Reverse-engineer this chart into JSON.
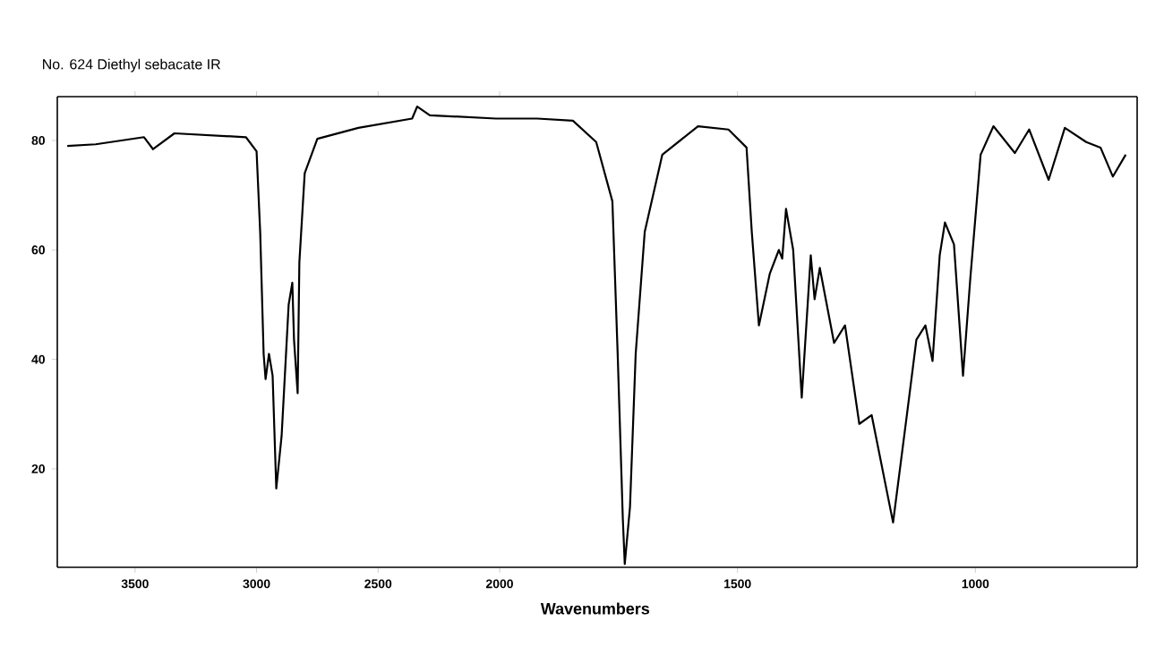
{
  "chart_data": [
    {
      "type": "line",
      "title": "No. 624 Diethyl sebacate IR",
      "color": "#000000",
      "line_style": "solid",
      "xlim": [
        3820,
        2000
      ],
      "ylim": [
        2,
        88
      ],
      "xticks": [
        3500,
        3000,
        2500,
        2000
      ],
      "yticks": [
        20,
        40,
        60,
        80
      ],
      "x": [
        3779,
        3662,
        3463,
        3426,
        3338,
        3044,
        3000,
        2985,
        2971,
        2963,
        2949,
        2934,
        2919,
        2897,
        2868,
        2853,
        2846,
        2831,
        2824,
        2802,
        2750,
        2581,
        2360,
        2339,
        2287,
        2015,
        2000
      ],
      "values": [
        79,
        79.3,
        80.6,
        78.4,
        81.3,
        80.6,
        78,
        63,
        41,
        36.4,
        41,
        37,
        16.4,
        26,
        50,
        54,
        43.6,
        33.8,
        57.7,
        74,
        80.3,
        82.3,
        84,
        86.2,
        84.6,
        84,
        84
      ]
    },
    {
      "type": "line",
      "xlabel": "Wavenumbers",
      "color": "#000000",
      "line_style": "solid",
      "xlim": [
        2000,
        660
      ],
      "ylim": [
        2,
        88
      ],
      "xticks": [
        1500,
        1000
      ],
      "tick_labels": "x",
      "x": [
        2000,
        1921,
        1846,
        1797,
        1763,
        1752,
        1741,
        1737,
        1726,
        1714,
        1695,
        1658,
        1583,
        1519,
        1481,
        1470,
        1455,
        1432,
        1413,
        1406,
        1398,
        1383,
        1365,
        1346,
        1338,
        1327,
        1297,
        1274,
        1244,
        1218,
        1173,
        1143,
        1124,
        1105,
        1090,
        1075,
        1064,
        1045,
        1026,
        1011,
        989,
        962,
        917,
        887,
        846,
        812,
        767,
        737,
        711,
        684
      ],
      "values": [
        84,
        84,
        83.6,
        79.7,
        68.9,
        41.3,
        10.8,
        2.6,
        13,
        41,
        63.3,
        77.4,
        82.6,
        82,
        78.7,
        63.3,
        46.2,
        55.7,
        60,
        58.4,
        67.5,
        60,
        33,
        59,
        51,
        56.7,
        43,
        46.2,
        28.2,
        29.8,
        10.2,
        30.5,
        43.6,
        46.2,
        39.7,
        59,
        65,
        61,
        37,
        54.4,
        77.4,
        82.6,
        77.7,
        82,
        72.8,
        82.3,
        79.7,
        78.7,
        73.4,
        77.4
      ]
    }
  ]
}
